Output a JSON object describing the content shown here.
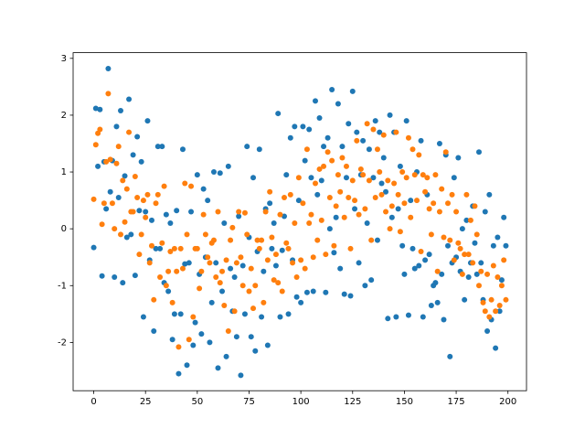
{
  "chart_data": {
    "type": "scatter",
    "x": [
      0,
      1,
      2,
      3,
      4,
      5,
      6,
      7,
      8,
      9,
      10,
      11,
      12,
      13,
      14,
      15,
      16,
      17,
      18,
      19,
      20,
      21,
      22,
      23,
      24,
      25,
      26,
      27,
      28,
      29,
      30,
      31,
      32,
      33,
      34,
      35,
      36,
      37,
      38,
      39,
      40,
      41,
      42,
      43,
      44,
      45,
      46,
      47,
      48,
      49,
      50,
      51,
      52,
      53,
      54,
      55,
      56,
      57,
      58,
      59,
      60,
      61,
      62,
      63,
      64,
      65,
      66,
      67,
      68,
      69,
      70,
      71,
      72,
      73,
      74,
      75,
      76,
      77,
      78,
      79,
      80,
      81,
      82,
      83,
      84,
      85,
      86,
      87,
      88,
      89,
      90,
      91,
      92,
      93,
      94,
      95,
      96,
      97,
      98,
      99,
      100,
      101,
      102,
      103,
      104,
      105,
      106,
      107,
      108,
      109,
      110,
      111,
      112,
      113,
      114,
      115,
      116,
      117,
      118,
      119,
      120,
      121,
      122,
      123,
      124,
      125,
      126,
      127,
      128,
      129,
      130,
      131,
      132,
      133,
      134,
      135,
      136,
      137,
      138,
      139,
      140,
      141,
      142,
      143,
      144,
      145,
      146,
      147,
      148,
      149,
      150,
      151,
      152,
      153,
      154,
      155,
      156,
      157,
      158,
      159,
      160,
      161,
      162,
      163,
      164,
      165,
      166,
      167,
      168,
      169,
      170,
      171,
      172,
      173,
      174,
      175,
      176,
      177,
      178,
      179,
      180,
      181,
      182,
      183,
      184,
      185,
      186,
      187,
      188,
      189,
      190,
      191,
      192,
      193,
      194,
      195,
      196,
      197,
      198,
      199
    ],
    "series": [
      {
        "color": "#1f77b4",
        "values": [
          -0.33,
          2.12,
          1.1,
          2.1,
          -0.83,
          1.18,
          0.35,
          2.82,
          0.65,
          1.2,
          -0.85,
          1.8,
          0.55,
          2.08,
          -0.95,
          0.93,
          -0.15,
          2.28,
          -0.1,
          1.3,
          -0.82,
          1.62,
          0.32,
          1.18,
          -1.55,
          0.3,
          1.9,
          -0.55,
          0.15,
          -1.8,
          -0.35,
          1.45,
          -0.35,
          1.45,
          -0.95,
          0.25,
          -1.1,
          0.1,
          -1.95,
          -1.5,
          0.32,
          -2.55,
          -1.5,
          1.4,
          -0.62,
          -2.4,
          -0.6,
          0.3,
          -2.05,
          -1.65,
          0.95,
          -0.8,
          -1.85,
          0.7,
          -0.5,
          0.5,
          -2.0,
          -1.3,
          1.0,
          -0.6,
          -2.45,
          0.98,
          -1.1,
          0.1,
          -2.25,
          1.1,
          -0.7,
          -1.45,
          -0.85,
          -1.9,
          0.22,
          -2.58,
          -0.65,
          -1.5,
          1.45,
          -0.15,
          -1.9,
          0.9,
          -2.15,
          -0.4,
          1.4,
          -1.55,
          -0.75,
          0.35,
          -2.05,
          0.45,
          -0.35,
          0.1,
          -0.65,
          2.03,
          -1.55,
          -0.38,
          0.22,
          0.95,
          -1.5,
          1.6,
          -0.55,
          1.8,
          -1.2,
          0.5,
          -1.3,
          1.8,
          1.2,
          -1.12,
          1.75,
          0.9,
          -1.1,
          2.25,
          0.6,
          1.95,
          0.85,
          1.45,
          -1.12,
          1.6,
          0.0,
          2.45,
          -0.42,
          0.2,
          2.2,
          -0.7,
          1.45,
          -1.15,
          0.9,
          1.85,
          -1.18,
          2.42,
          0.35,
          1.7,
          -0.6,
          0.95,
          1.55,
          -1.0,
          0.1,
          1.4,
          -0.9,
          0.9,
          1.9,
          -0.2,
          1.7,
          0.8,
          1.25,
          0.65,
          -1.58,
          2.0,
          0.2,
          1.7,
          -1.55,
          0.35,
          1.1,
          -0.3,
          -0.8,
          1.9,
          -1.52,
          0.5,
          -0.35,
          -0.7,
          1.0,
          -0.65,
          1.55,
          -1.55,
          -0.55,
          0.6,
          -0.45,
          -1.35,
          -1.0,
          -0.95,
          -1.3,
          1.5,
          -0.8,
          -1.6,
          1.3,
          -0.3,
          -2.25,
          -0.6,
          0.9,
          -0.5,
          1.25,
          -0.75,
          0.0,
          -1.25,
          0.15,
          -0.85,
          -0.6,
          0.4,
          -0.25,
          -0.8,
          1.35,
          -0.6,
          -1.25,
          0.3,
          -1.8,
          0.6,
          -1.6,
          -0.3,
          -2.1,
          -0.15,
          -1.45,
          -0.9,
          0.2,
          -0.3
        ]
      },
      {
        "color": "#ff7f0e",
        "values": [
          0.52,
          1.48,
          1.68,
          1.75,
          0.08,
          0.45,
          1.18,
          2.38,
          1.22,
          0.45,
          0.0,
          1.15,
          1.45,
          -0.1,
          0.85,
          0.12,
          0.7,
          1.7,
          0.3,
          0.3,
          0.92,
          0.55,
          -0.45,
          -0.1,
          0.5,
          0.2,
          0.6,
          -0.6,
          -0.3,
          -1.25,
          0.45,
          0.6,
          -0.85,
          -0.25,
          0.75,
          -1.0,
          -0.75,
          -0.4,
          -1.3,
          -0.35,
          -0.75,
          -2.08,
          -0.35,
          -0.7,
          0.8,
          -0.1,
          -1.95,
          0.75,
          -1.55,
          -0.35,
          -0.35,
          -1.05,
          -0.75,
          0.25,
          -0.1,
          -0.5,
          -0.6,
          -0.25,
          -0.2,
          -0.85,
          0.3,
          -0.95,
          -0.75,
          -1.35,
          -0.55,
          -1.8,
          -0.2,
          0.02,
          -1.45,
          -0.6,
          0.3,
          -0.5,
          -1.0,
          0.28,
          -0.1,
          -1.1,
          -0.7,
          -1.4,
          -1.0,
          -0.2,
          -0.35,
          -0.2,
          -1.3,
          0.3,
          -0.55,
          0.65,
          -0.15,
          -0.9,
          -0.45,
          -0.95,
          0.25,
          -1.1,
          0.55,
          -0.25,
          -0.35,
          0.6,
          -0.6,
          0.1,
          -0.85,
          0.9,
          -0.55,
          0.45,
          -0.7,
          1.4,
          0.1,
          0.25,
          -0.5,
          0.8,
          -0.2,
          1.05,
          0.15,
          1.1,
          -0.45,
          1.35,
          0.55,
          1.2,
          -0.3,
          0.4,
          0.95,
          0.65,
          1.25,
          0.2,
          1.1,
          0.55,
          -0.35,
          0.85,
          0.5,
          1.55,
          0.25,
          1.05,
          0.95,
          0.35,
          1.85,
          0.85,
          -0.2,
          1.75,
          0.55,
          1.4,
          1.0,
          0.6,
          1.65,
          0.3,
          0.85,
          0.0,
          0.4,
          0.8,
          1.7,
          0.6,
          -0.05,
          1.0,
          0.45,
          0.9,
          1.6,
          0.2,
          1.4,
          0.95,
          0.5,
          1.3,
          -0.4,
          0.95,
          0.65,
          0.9,
          0.35,
          -0.1,
          0.45,
          0.95,
          -0.75,
          0.3,
          0.7,
          -0.15,
          1.35,
          0.45,
          -0.2,
          0.6,
          -0.55,
          0.3,
          -0.25,
          -0.35,
          -0.8,
          -0.45,
          0.6,
          -0.45,
          0.15,
          -0.6,
          0.4,
          -0.1,
          -1.0,
          -0.75,
          -1.3,
          -1.45,
          -0.8,
          -1.55,
          -1.25,
          -0.65,
          -1.45,
          -0.85,
          -1.35,
          -1.0,
          -0.55,
          -1.25
        ]
      }
    ],
    "xlim": [
      -9.95,
      208.95
    ],
    "xticks": [
      0,
      25,
      50,
      75,
      100,
      125,
      150,
      175,
      200
    ],
    "ylim": [
      -2.85,
      3.1
    ],
    "yticks": [
      -2,
      -1,
      0,
      1,
      2,
      3
    ]
  }
}
